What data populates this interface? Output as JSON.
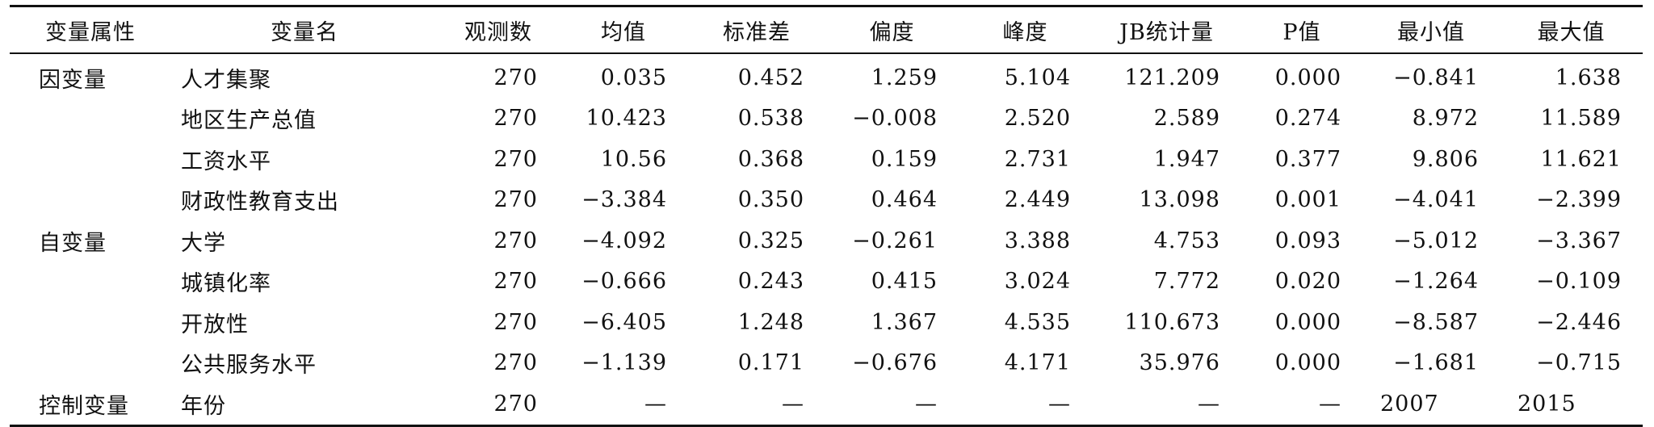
{
  "headers": [
    "变量属性",
    "变量名",
    "观测数",
    "均值",
    "标准差",
    "偏度",
    "峰度",
    "JB统计量",
    "P值",
    "最小值",
    "最大值"
  ],
  "rows": [
    [
      "因变量",
      "人才集聚",
      "270",
      "0.035",
      "0.452",
      "1.259",
      "5.104",
      "121.209",
      "0.000",
      "−0.841",
      "1.638"
    ],
    [
      "",
      "地区生产总值",
      "270",
      "10.423",
      "0.538",
      "−0.008",
      "2.520",
      "2.589",
      "0.274",
      "8.972",
      "11.589"
    ],
    [
      "",
      "工资水平",
      "270",
      "10.56",
      "0.368",
      "0.159",
      "2.731",
      "1.947",
      "0.377",
      "9.806",
      "11.621"
    ],
    [
      "",
      "财政性教育支出",
      "270",
      "−3.384",
      "0.350",
      "0.464",
      "2.449",
      "13.098",
      "0.001",
      "−4.041",
      "−2.399"
    ],
    [
      "自变量",
      "大学",
      "270",
      "−4.092",
      "0.325",
      "−0.261",
      "3.388",
      "4.753",
      "0.093",
      "−5.012",
      "−3.367"
    ],
    [
      "",
      "城镇化率",
      "270",
      "−0.666",
      "0.243",
      "0.415",
      "3.024",
      "7.772",
      "0.020",
      "−1.264",
      "−0.109"
    ],
    [
      "",
      "开放性",
      "270",
      "−6.405",
      "1.248",
      "1.367",
      "4.535",
      "110.673",
      "0.000",
      "−8.587",
      "−2.446"
    ],
    [
      "",
      "公共服务水平",
      "270",
      "−1.139",
      "0.171",
      "−0.676",
      "4.171",
      "35.976",
      "0.000",
      "−1.681",
      "−0.715"
    ],
    [
      "控制变量",
      "年份",
      "270",
      "—",
      "—",
      "—",
      "—",
      "—",
      "—",
      "2007",
      "2015"
    ]
  ]
}
